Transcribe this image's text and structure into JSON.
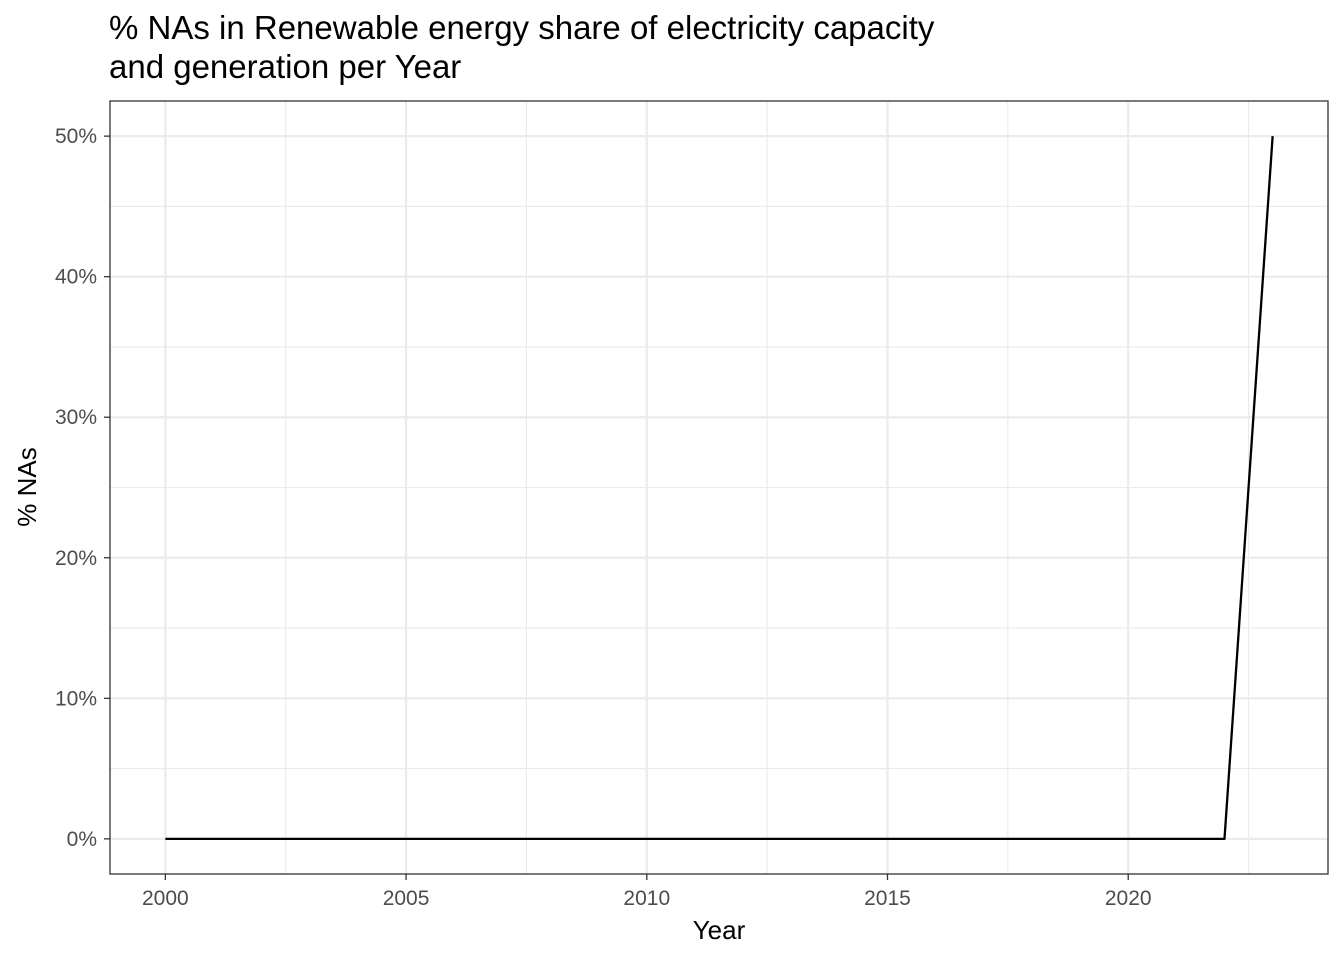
{
  "chart_data": {
    "type": "line",
    "title_lines": [
      "% NAs in Renewable energy share of electricity capacity",
      "and generation per Year"
    ],
    "xlabel": "Year",
    "ylabel": "% NAs",
    "x_ticks": [
      "2000",
      "2005",
      "2010",
      "2015",
      "2020"
    ],
    "x_tick_values": [
      2000,
      2005,
      2010,
      2015,
      2020
    ],
    "y_ticks": [
      "0%",
      "10%",
      "20%",
      "30%",
      "40%",
      "50%"
    ],
    "y_tick_values": [
      0,
      10,
      20,
      30,
      40,
      50
    ],
    "xlim": [
      1998.85,
      2024.15
    ],
    "ylim": [
      -2.5,
      52.5
    ],
    "grid": true,
    "series": [
      {
        "color": "#000000",
        "x": [
          2000,
          2001,
          2002,
          2003,
          2004,
          2005,
          2006,
          2007,
          2008,
          2009,
          2010,
          2011,
          2012,
          2013,
          2014,
          2015,
          2016,
          2017,
          2018,
          2019,
          2020,
          2021,
          2022,
          2023
        ],
        "y": [
          0,
          0,
          0,
          0,
          0,
          0,
          0,
          0,
          0,
          0,
          0,
          0,
          0,
          0,
          0,
          0,
          0,
          0,
          0,
          0,
          0,
          0,
          0,
          50
        ]
      }
    ]
  }
}
